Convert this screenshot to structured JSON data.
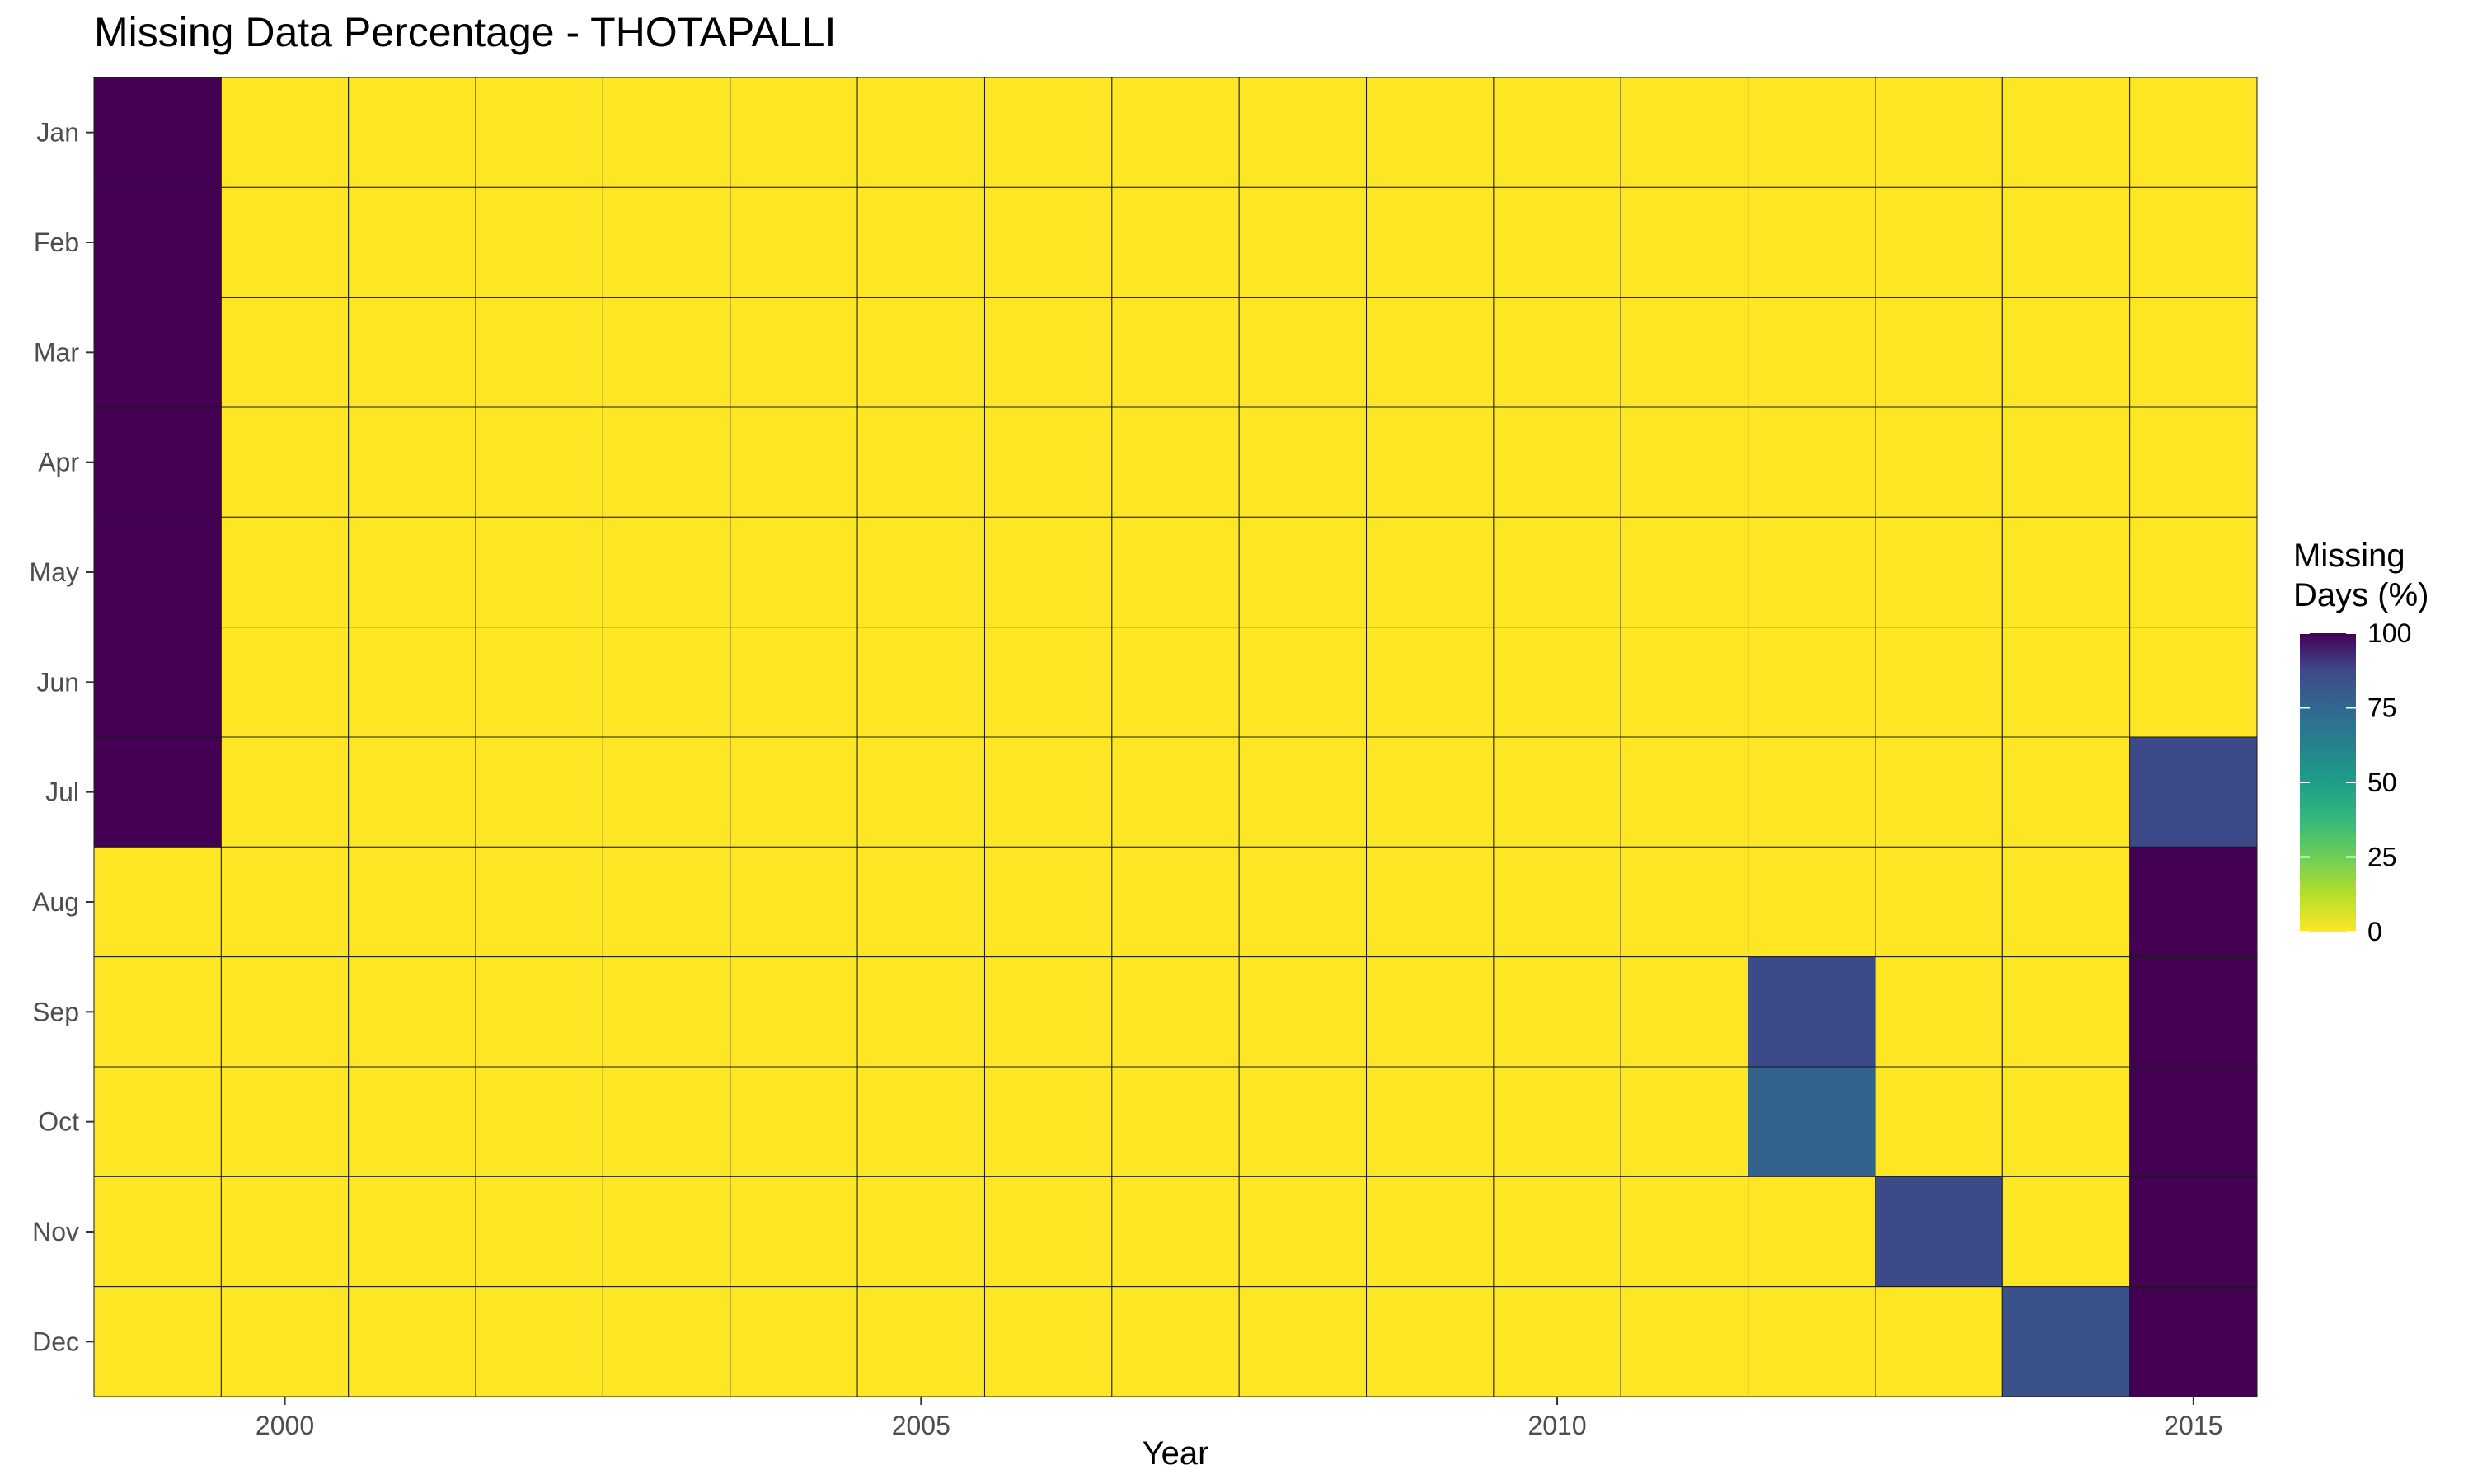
{
  "chart_data": {
    "type": "heatmap",
    "title": "Missing Data Percentage - THOTAPALLI",
    "xlabel": "Year",
    "ylabel": "",
    "x": [
      1999,
      2000,
      2001,
      2002,
      2003,
      2004,
      2005,
      2006,
      2007,
      2008,
      2009,
      2010,
      2011,
      2012,
      2013,
      2014,
      2015
    ],
    "x_ticks": [
      2000,
      2005,
      2010,
      2015
    ],
    "y": [
      "Jan",
      "Feb",
      "Mar",
      "Apr",
      "May",
      "Jun",
      "Jul",
      "Aug",
      "Sep",
      "Oct",
      "Nov",
      "Dec"
    ],
    "values": [
      [
        100,
        0,
        0,
        0,
        0,
        0,
        0,
        0,
        0,
        0,
        0,
        0,
        0,
        0,
        0,
        0,
        0
      ],
      [
        100,
        0,
        0,
        0,
        0,
        0,
        0,
        0,
        0,
        0,
        0,
        0,
        0,
        0,
        0,
        0,
        0
      ],
      [
        100,
        0,
        0,
        0,
        0,
        0,
        0,
        0,
        0,
        0,
        0,
        0,
        0,
        0,
        0,
        0,
        0
      ],
      [
        100,
        0,
        0,
        0,
        0,
        0,
        0,
        0,
        0,
        0,
        0,
        0,
        0,
        0,
        0,
        0,
        0
      ],
      [
        100,
        0,
        0,
        0,
        0,
        0,
        0,
        0,
        0,
        0,
        0,
        0,
        0,
        0,
        0,
        0,
        0
      ],
      [
        100,
        0,
        0,
        0,
        0,
        0,
        0,
        0,
        0,
        0,
        0,
        0,
        0,
        0,
        0,
        0,
        0
      ],
      [
        100,
        0,
        0,
        0,
        0,
        0,
        0,
        0,
        0,
        0,
        0,
        0,
        0,
        0,
        0,
        0,
        87
      ],
      [
        0,
        0,
        0,
        0,
        0,
        0,
        0,
        0,
        0,
        0,
        0,
        0,
        0,
        0,
        0,
        0,
        100
      ],
      [
        0,
        0,
        0,
        0,
        0,
        0,
        0,
        0,
        0,
        0,
        0,
        0,
        0,
        87,
        0,
        0,
        100
      ],
      [
        0,
        0,
        0,
        0,
        0,
        0,
        0,
        0,
        0,
        0,
        0,
        0,
        0,
        77,
        0,
        0,
        100
      ],
      [
        0,
        0,
        0,
        0,
        0,
        0,
        0,
        0,
        0,
        0,
        0,
        0,
        0,
        0,
        87,
        0,
        100
      ],
      [
        0,
        0,
        0,
        0,
        0,
        0,
        0,
        0,
        0,
        0,
        0,
        0,
        0,
        0,
        0,
        84,
        100
      ]
    ],
    "colorbar": {
      "title_lines": [
        "Missing",
        "Days (%)"
      ],
      "ticks": [
        0,
        25,
        50,
        75,
        100
      ],
      "range": [
        0,
        100
      ],
      "colormap": "viridis (reversed: 0 = yellow, 100 = dark purple)"
    },
    "grid": false,
    "legend_position": "right"
  }
}
